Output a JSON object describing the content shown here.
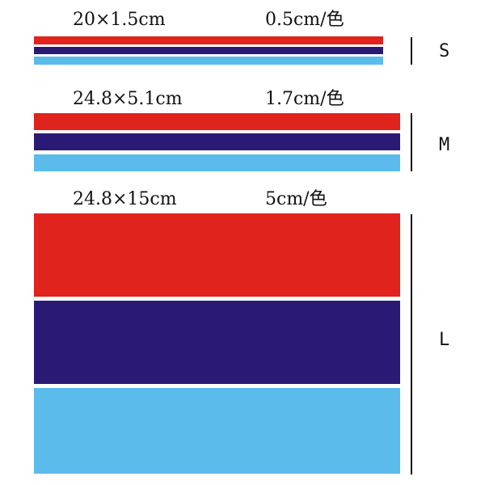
{
  "colors": {
    "red": "#e0231c",
    "navy": "#2a1a75",
    "light_blue": "#5bbbea"
  },
  "sizes": {
    "s": {
      "dimensions": "20×1.5cm",
      "per_color": "0.5cm/色",
      "letter": "S"
    },
    "m": {
      "dimensions": "24.8×5.1cm",
      "per_color": "1.7cm/色",
      "letter": "M"
    },
    "l": {
      "dimensions": "24.8×15cm",
      "per_color": "5cm/色",
      "letter": "L"
    }
  }
}
